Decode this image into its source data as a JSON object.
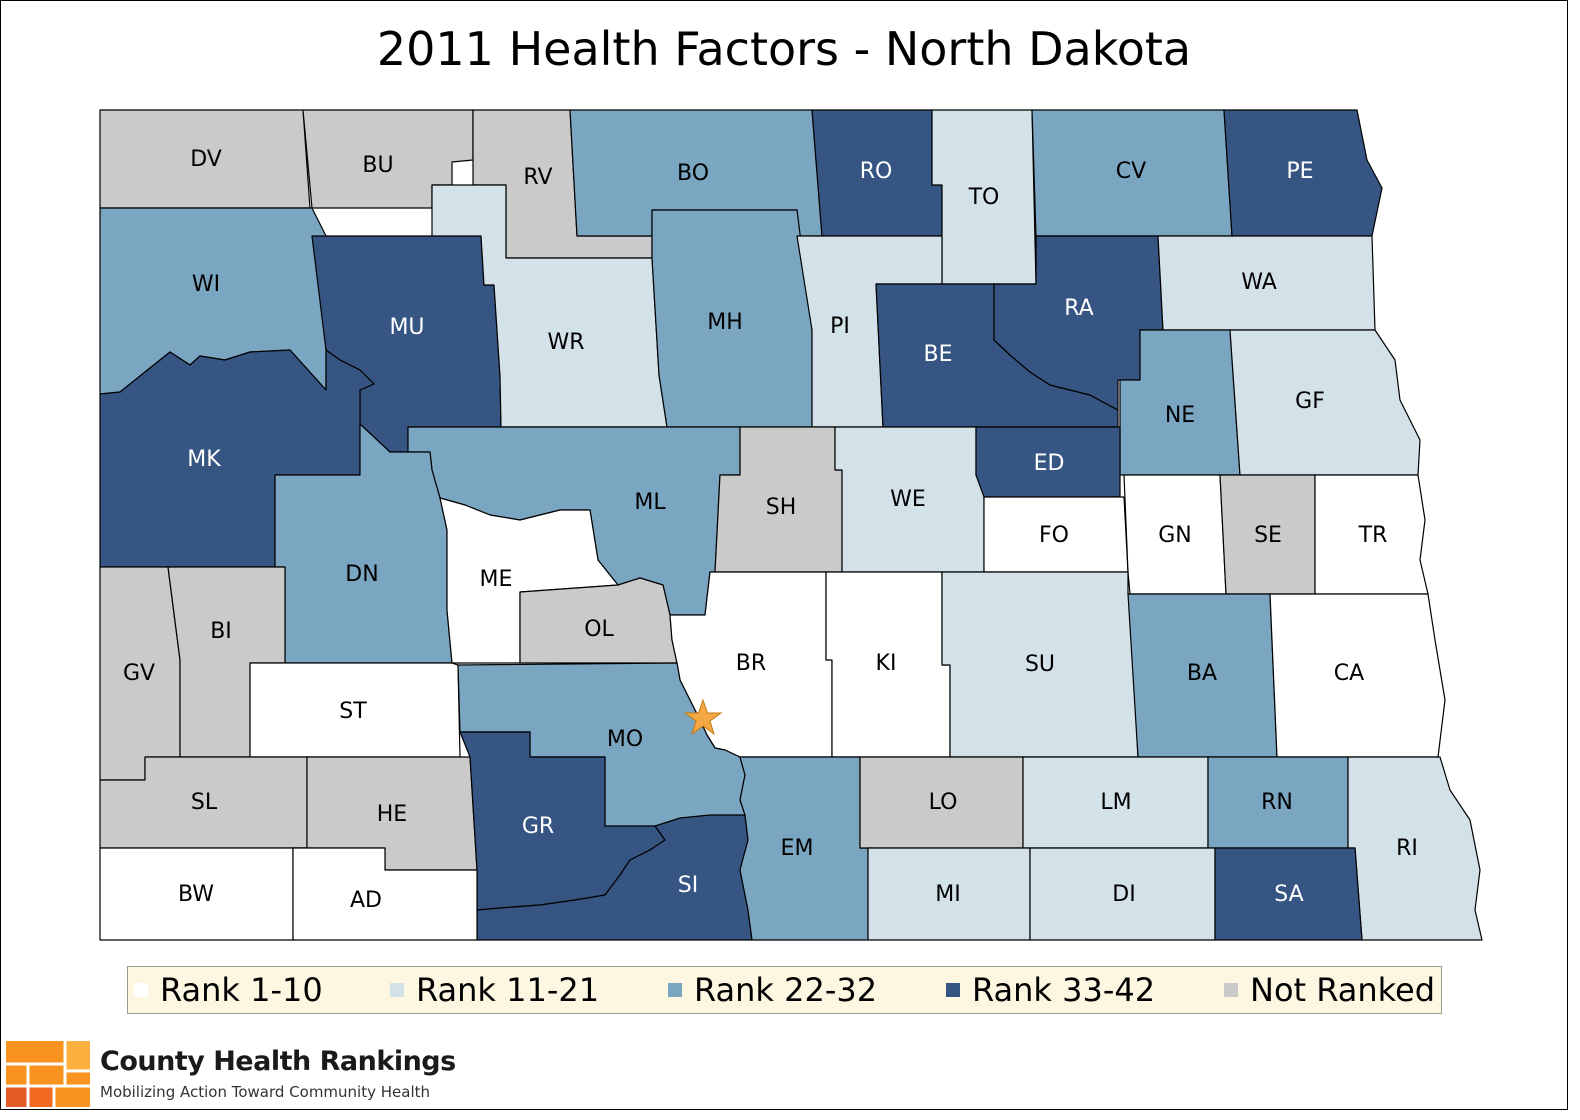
{
  "title": "2011 Health Factors - North Dakota",
  "colors": {
    "rank_1_10": "#ffffff",
    "rank_11_21": "#d3e1e9",
    "rank_22_32": "#7ba6c1",
    "rank_33_42": "#365583",
    "not_ranked": "#cacaca",
    "capital_star": "#f4a742",
    "legend_bg": "#fdf6e0"
  },
  "legend": [
    {
      "key": "rank_1_10",
      "label": "Rank 1-10"
    },
    {
      "key": "rank_11_21",
      "label": "Rank 11-21"
    },
    {
      "key": "rank_22_32",
      "label": "Rank 22-32"
    },
    {
      "key": "rank_33_42",
      "label": "Rank 33-42"
    },
    {
      "key": "not_ranked",
      "label": "Not Ranked"
    }
  ],
  "counties": [
    {
      "code": "DV",
      "category": "not_ranked"
    },
    {
      "code": "BU",
      "category": "not_ranked"
    },
    {
      "code": "RV",
      "category": "not_ranked"
    },
    {
      "code": "BO",
      "category": "rank_22_32"
    },
    {
      "code": "RO",
      "category": "rank_33_42"
    },
    {
      "code": "TO",
      "category": "rank_11_21"
    },
    {
      "code": "CV",
      "category": "rank_22_32"
    },
    {
      "code": "PE",
      "category": "rank_33_42"
    },
    {
      "code": "WI",
      "category": "rank_22_32"
    },
    {
      "code": "MU",
      "category": "rank_33_42"
    },
    {
      "code": "WR",
      "category": "rank_11_21"
    },
    {
      "code": "MH",
      "category": "rank_22_32"
    },
    {
      "code": "PI",
      "category": "rank_11_21"
    },
    {
      "code": "BE",
      "category": "rank_33_42"
    },
    {
      "code": "RA",
      "category": "rank_33_42"
    },
    {
      "code": "WA",
      "category": "rank_11_21"
    },
    {
      "code": "NE",
      "category": "rank_22_32"
    },
    {
      "code": "GF",
      "category": "rank_11_21"
    },
    {
      "code": "MK",
      "category": "rank_33_42"
    },
    {
      "code": "ML",
      "category": "rank_22_32"
    },
    {
      "code": "SH",
      "category": "not_ranked"
    },
    {
      "code": "WE",
      "category": "rank_11_21"
    },
    {
      "code": "ED",
      "category": "rank_33_42"
    },
    {
      "code": "FO",
      "category": "rank_1_10"
    },
    {
      "code": "GN",
      "category": "rank_1_10"
    },
    {
      "code": "SE",
      "category": "not_ranked"
    },
    {
      "code": "TR",
      "category": "rank_1_10"
    },
    {
      "code": "DN",
      "category": "rank_22_32"
    },
    {
      "code": "ME",
      "category": "rank_1_10"
    },
    {
      "code": "OL",
      "category": "not_ranked"
    },
    {
      "code": "BR",
      "category": "rank_1_10"
    },
    {
      "code": "KI",
      "category": "rank_1_10"
    },
    {
      "code": "SU",
      "category": "rank_11_21"
    },
    {
      "code": "BA",
      "category": "rank_22_32"
    },
    {
      "code": "CA",
      "category": "rank_1_10"
    },
    {
      "code": "GV",
      "category": "not_ranked"
    },
    {
      "code": "BI",
      "category": "not_ranked"
    },
    {
      "code": "ST",
      "category": "rank_1_10"
    },
    {
      "code": "MO",
      "category": "rank_22_32"
    },
    {
      "code": "SL",
      "category": "not_ranked"
    },
    {
      "code": "HE",
      "category": "not_ranked"
    },
    {
      "code": "GR",
      "category": "rank_33_42"
    },
    {
      "code": "SI",
      "category": "rank_33_42"
    },
    {
      "code": "EM",
      "category": "rank_22_32"
    },
    {
      "code": "LO",
      "category": "not_ranked"
    },
    {
      "code": "LM",
      "category": "rank_11_21"
    },
    {
      "code": "RN",
      "category": "rank_22_32"
    },
    {
      "code": "RI",
      "category": "rank_11_21"
    },
    {
      "code": "MI",
      "category": "rank_11_21"
    },
    {
      "code": "DI",
      "category": "rank_11_21"
    },
    {
      "code": "SA",
      "category": "rank_33_42"
    },
    {
      "code": "BW",
      "category": "rank_1_10"
    },
    {
      "code": "AD",
      "category": "rank_1_10"
    }
  ],
  "brand": {
    "name": "County Health Rankings",
    "tagline": "Mobilizing Action Toward Community Health"
  }
}
